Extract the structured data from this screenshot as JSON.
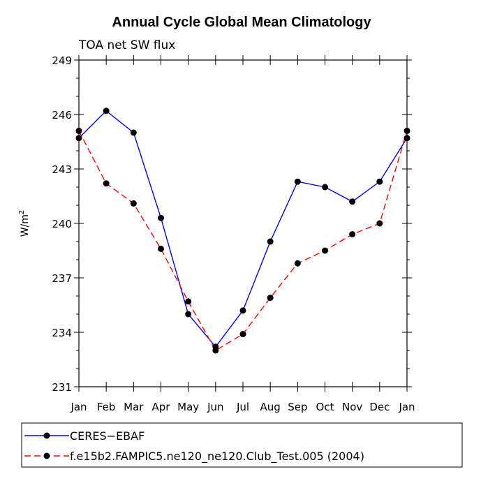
{
  "chart_data": {
    "type": "line",
    "title": "Annual Cycle Global Mean Climatology",
    "subtitle": "TOA net SW flux",
    "xlabel": "",
    "ylabel": "W/m",
    "ylabel_superscript": "2",
    "ylim": [
      231,
      249
    ],
    "yticks": [
      "231",
      "234",
      "237",
      "240",
      "243",
      "246",
      "249"
    ],
    "categories": [
      "Jan",
      "Feb",
      "Mar",
      "Apr",
      "May",
      "Jun",
      "Jul",
      "Aug",
      "Sep",
      "Oct",
      "Nov",
      "Dec",
      "Jan"
    ],
    "grid": false,
    "legend_position": "bottom",
    "series": [
      {
        "name": "CERES−EBAF",
        "color": "#0000ff",
        "dash": "solid",
        "values": [
          244.7,
          246.2,
          245.0,
          240.3,
          235.0,
          233.2,
          235.2,
          239.0,
          242.3,
          242.0,
          241.2,
          242.3,
          244.7
        ]
      },
      {
        "name": "f.e15b2.FAMPIC5.ne120_ne120.Club_Test.005 (2004)",
        "color": "#ff0000",
        "dash": "dashed",
        "values": [
          245.1,
          242.2,
          241.1,
          238.6,
          235.7,
          233.0,
          233.9,
          235.9,
          237.8,
          238.5,
          239.4,
          240.0,
          245.1
        ]
      }
    ]
  }
}
